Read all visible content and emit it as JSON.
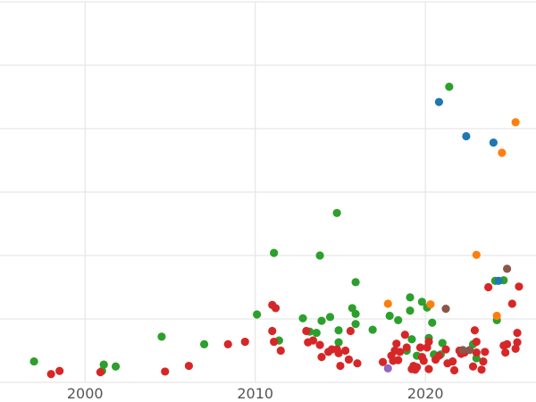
{
  "chart_data": {
    "type": "scatter",
    "title": "",
    "xlabel": "",
    "ylabel": "",
    "xlim": [
      1995,
      2026.5
    ],
    "ylim": [
      0,
      6
    ],
    "x_ticks": [
      2000,
      2010,
      2020
    ],
    "x_tick_labels": [
      "2000",
      "2010",
      "2020"
    ],
    "grid": true,
    "legend": "none",
    "series": [
      {
        "color": "#2ca02c",
        "points": [
          [
            1997.0,
            0.33
          ],
          [
            2001.0,
            0.18
          ],
          [
            2001.1,
            0.28
          ],
          [
            2001.8,
            0.25
          ],
          [
            2004.5,
            0.72
          ],
          [
            2007.0,
            0.6
          ],
          [
            2010.1,
            1.07
          ],
          [
            2011.1,
            2.04
          ],
          [
            2011.4,
            0.66
          ],
          [
            2012.8,
            1.01
          ],
          [
            2013.2,
            0.8
          ],
          [
            2013.6,
            0.78
          ],
          [
            2013.8,
            2.0
          ],
          [
            2013.9,
            0.97
          ],
          [
            2014.4,
            1.03
          ],
          [
            2014.8,
            2.67
          ],
          [
            2014.9,
            0.82
          ],
          [
            2014.9,
            0.63
          ],
          [
            2015.7,
            1.17
          ],
          [
            2015.9,
            1.58
          ],
          [
            2015.9,
            1.08
          ],
          [
            2015.9,
            0.92
          ],
          [
            2016.9,
            0.83
          ],
          [
            2017.9,
            1.05
          ],
          [
            2018.4,
            0.98
          ],
          [
            2018.9,
            0.5
          ],
          [
            2019.1,
            1.34
          ],
          [
            2019.1,
            1.13
          ],
          [
            2019.2,
            0.68
          ],
          [
            2019.5,
            0.42
          ],
          [
            2019.8,
            1.27
          ],
          [
            2020.1,
            1.18
          ],
          [
            2020.2,
            0.7
          ],
          [
            2020.4,
            0.94
          ],
          [
            2020.5,
            0.44
          ],
          [
            2020.9,
            0.44
          ],
          [
            2021.0,
            0.62
          ],
          [
            2021.4,
            4.66
          ],
          [
            2022.8,
            0.6
          ],
          [
            2023.0,
            0.38
          ],
          [
            2024.1,
            1.6
          ],
          [
            2024.2,
            0.98
          ],
          [
            2024.6,
            1.61
          ]
        ]
      },
      {
        "color": "#1f77b4",
        "points": [
          [
            2020.8,
            4.42
          ],
          [
            2022.4,
            3.88
          ],
          [
            2024.0,
            3.78
          ],
          [
            2024.3,
            1.6
          ]
        ]
      },
      {
        "color": "#ff7f0e",
        "points": [
          [
            2017.8,
            1.24
          ],
          [
            2020.3,
            1.23
          ],
          [
            2023.0,
            2.01
          ],
          [
            2024.2,
            1.05
          ],
          [
            2024.5,
            3.62
          ],
          [
            2025.3,
            4.1
          ]
        ]
      },
      {
        "color": "#d62728",
        "points": [
          [
            1998.0,
            0.13
          ],
          [
            1998.5,
            0.18
          ],
          [
            2000.9,
            0.16
          ],
          [
            2004.7,
            0.17
          ],
          [
            2006.1,
            0.26
          ],
          [
            2008.4,
            0.6
          ],
          [
            2009.4,
            0.64
          ],
          [
            2011.0,
            1.22
          ],
          [
            2011.0,
            0.81
          ],
          [
            2011.1,
            0.64
          ],
          [
            2011.2,
            1.17
          ],
          [
            2011.5,
            0.5
          ],
          [
            2013.0,
            0.81
          ],
          [
            2013.1,
            0.63
          ],
          [
            2013.4,
            0.66
          ],
          [
            2013.8,
            0.59
          ],
          [
            2013.9,
            0.4
          ],
          [
            2014.3,
            0.48
          ],
          [
            2014.5,
            0.52
          ],
          [
            2014.8,
            0.52
          ],
          [
            2014.9,
            0.46
          ],
          [
            2015.0,
            0.26
          ],
          [
            2015.3,
            0.5
          ],
          [
            2015.5,
            0.36
          ],
          [
            2015.6,
            0.81
          ],
          [
            2016.0,
            0.3
          ],
          [
            2017.5,
            0.32
          ],
          [
            2018.0,
            0.42
          ],
          [
            2018.1,
            0.34
          ],
          [
            2018.2,
            0.5
          ],
          [
            2018.3,
            0.61
          ],
          [
            2018.4,
            0.35
          ],
          [
            2018.5,
            0.48
          ],
          [
            2018.8,
            0.75
          ],
          [
            2018.9,
            0.55
          ],
          [
            2019.2,
            0.21
          ],
          [
            2019.3,
            0.26
          ],
          [
            2019.4,
            0.2
          ],
          [
            2019.5,
            0.24
          ],
          [
            2019.7,
            0.55
          ],
          [
            2019.8,
            0.4
          ],
          [
            2019.9,
            0.34
          ],
          [
            2020.1,
            0.55
          ],
          [
            2020.2,
            0.21
          ],
          [
            2020.2,
            0.64
          ],
          [
            2020.6,
            0.36
          ],
          [
            2020.8,
            0.42
          ],
          [
            2021.2,
            0.52
          ],
          [
            2021.3,
            0.3
          ],
          [
            2021.6,
            0.33
          ],
          [
            2021.7,
            0.19
          ],
          [
            2022.0,
            0.5
          ],
          [
            2022.1,
            0.45
          ],
          [
            2022.3,
            0.47
          ],
          [
            2022.8,
            0.25
          ],
          [
            2022.9,
            0.82
          ],
          [
            2023.0,
            0.64
          ],
          [
            2023.0,
            0.47
          ],
          [
            2023.3,
            0.2
          ],
          [
            2023.4,
            0.33
          ],
          [
            2023.5,
            0.48
          ],
          [
            2023.7,
            1.5
          ],
          [
            2024.6,
            0.58
          ],
          [
            2024.7,
            0.47
          ],
          [
            2024.8,
            0.6
          ],
          [
            2025.1,
            1.24
          ],
          [
            2025.3,
            0.53
          ],
          [
            2025.4,
            0.63
          ],
          [
            2025.5,
            1.51
          ],
          [
            2025.4,
            0.78
          ]
        ]
      },
      {
        "color": "#9467bd",
        "points": [
          [
            2017.8,
            0.22
          ]
        ]
      },
      {
        "color": "#8c564b",
        "points": [
          [
            2021.2,
            1.16
          ],
          [
            2022.2,
            0.51
          ],
          [
            2022.6,
            0.51
          ],
          [
            2024.8,
            1.79
          ]
        ]
      }
    ]
  }
}
